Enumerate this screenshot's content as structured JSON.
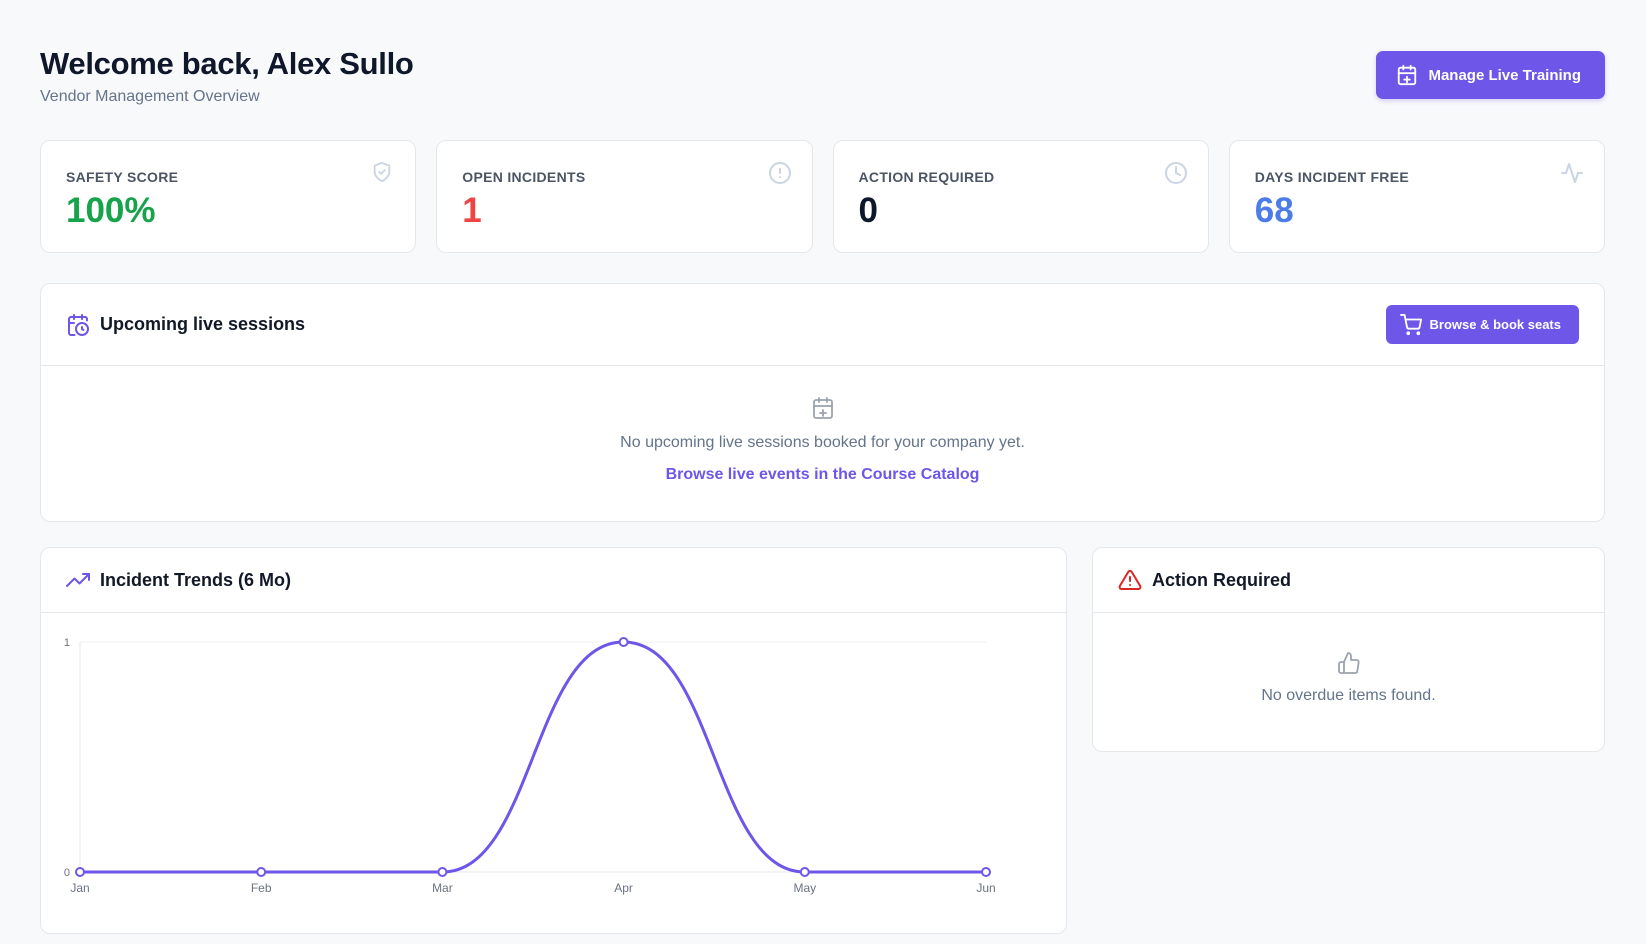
{
  "header": {
    "title": "Welcome back, Alex Sullo",
    "subtitle": "Vendor Management Overview",
    "manage_btn": "Manage Live Training"
  },
  "stats": [
    {
      "label": "SAFETY SCORE",
      "value": "100%",
      "color": "#16a34a",
      "icon": "shield-check-icon"
    },
    {
      "label": "OPEN INCIDENTS",
      "value": "1",
      "color": "#ef4444",
      "icon": "alert-circle-icon"
    },
    {
      "label": "ACTION REQUIRED",
      "value": "0",
      "color": "#0f172a",
      "icon": "clock-icon"
    },
    {
      "label": "DAYS INCIDENT FREE",
      "value": "68",
      "color": "#4c7ce8",
      "icon": "activity-icon"
    }
  ],
  "sessions": {
    "title": "Upcoming live sessions",
    "book_btn": "Browse & book seats",
    "empty_text": "No upcoming live sessions booked for your company yet.",
    "empty_link": "Browse live events in the Course Catalog"
  },
  "trends": {
    "title": "Incident Trends (6 Mo)"
  },
  "action": {
    "title": "Action Required",
    "empty_text": "No overdue items found."
  },
  "colors": {
    "accent": "#6e56e9",
    "danger": "#dc2626"
  },
  "chart_data": {
    "type": "line",
    "categories": [
      "Jan",
      "Feb",
      "Mar",
      "Apr",
      "May",
      "Jun"
    ],
    "series": [
      {
        "values": [
          0,
          0,
          0,
          1,
          0,
          0
        ]
      }
    ],
    "title": "Incident Trends (6 Mo)",
    "xlabel": "",
    "ylabel": "",
    "ylim": [
      0,
      1
    ],
    "yticks": [
      0,
      1
    ],
    "grid": true,
    "smooth": true
  }
}
